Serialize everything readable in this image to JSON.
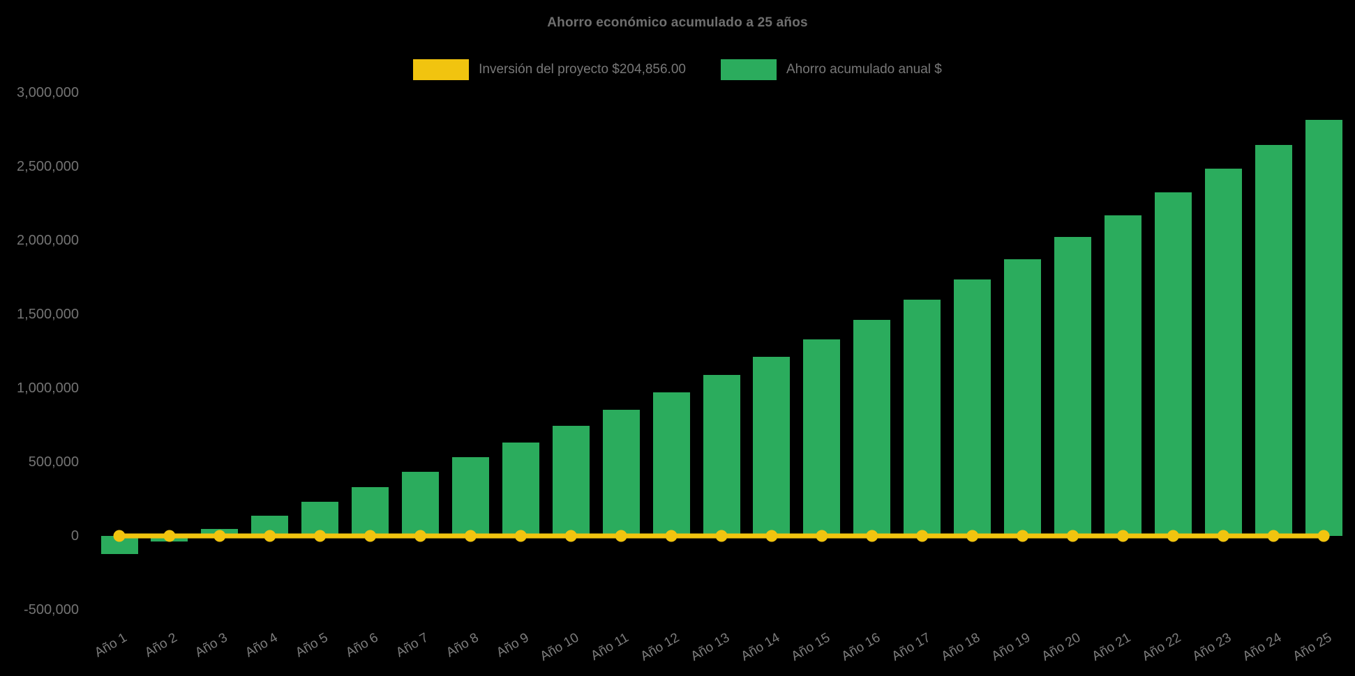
{
  "chart_data": {
    "type": "bar",
    "title": "Ahorro económico acumulado a 25 años",
    "background": "#000000",
    "legend_position": "top",
    "grid": false,
    "xlabel": "",
    "ylabel": "",
    "ylim": [
      -500000,
      3000000
    ],
    "ytick_step": 500000,
    "ytick_labels": [
      "3,000,000",
      "2,500,000",
      "2,000,000",
      "1,500,000",
      "1,000,000",
      "500,000",
      "0",
      "-500,000"
    ],
    "categories": [
      "Año 1",
      "Año 2",
      "Año 3",
      "Año 4",
      "Año 5",
      "Año 6",
      "Año 7",
      "Año 8",
      "Año 9",
      "Año 10",
      "Año 11",
      "Año 12",
      "Año 13",
      "Año 14",
      "Año 15",
      "Año 16",
      "Año 17",
      "Año 18",
      "Año 19",
      "Año 20",
      "Año 21",
      "Año 22",
      "Año 23",
      "Año 24",
      "Año 25"
    ],
    "series": [
      {
        "name": "Inversión del proyecto $204,856.00",
        "type": "line",
        "color": "#F1C40F",
        "marker": "circle",
        "values": [
          0,
          0,
          0,
          0,
          0,
          0,
          0,
          0,
          0,
          0,
          0,
          0,
          0,
          0,
          0,
          0,
          0,
          0,
          0,
          0,
          0,
          0,
          0,
          0,
          0
        ]
      },
      {
        "name": "Ahorro acumulado anual $",
        "type": "bar",
        "color": "#2BAC5D",
        "values": [
          -123000,
          -40000,
          47000,
          139000,
          231000,
          330000,
          434000,
          531000,
          632000,
          745000,
          854000,
          972000,
          1090000,
          1212000,
          1330000,
          1462000,
          1599000,
          1736000,
          1873000,
          2024000,
          2170000,
          2326000,
          2486000,
          2646000,
          2816000
        ]
      }
    ]
  }
}
